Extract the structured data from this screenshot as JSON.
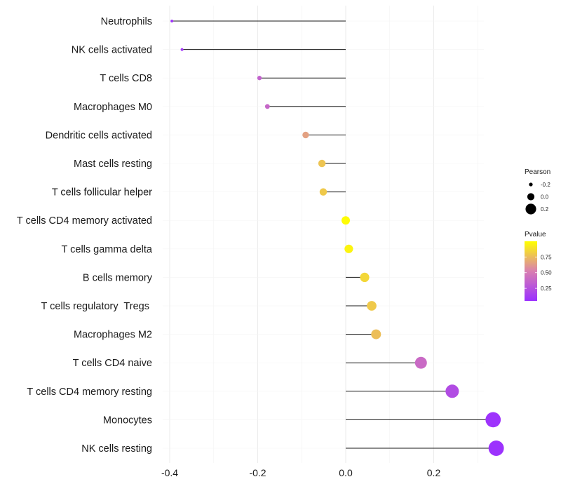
{
  "chart_data": {
    "type": "lollipop",
    "title": "",
    "xlabel": "",
    "ylabel": "",
    "xlim": [
      -0.42,
      0.36
    ],
    "x_ticks": [
      -0.4,
      -0.2,
      0.0,
      0.2
    ],
    "x_tick_labels": [
      "-0.4",
      "-0.2",
      "0.0",
      "0.2"
    ],
    "grid": true,
    "categories": [
      "Neutrophils",
      "NK cells activated",
      "T cells CD8",
      "Macrophages M0",
      "Dendritic cells activated",
      "Mast cells resting",
      "T cells follicular helper",
      "T cells CD4 memory activated",
      "T cells gamma delta",
      "B cells memory",
      "T cells regulatory  Tregs ",
      "Macrophages M2",
      "T cells CD4 naive",
      "T cells CD4 memory resting",
      "Monocytes",
      "NK cells resting"
    ],
    "pearson": [
      -0.395,
      -0.372,
      -0.196,
      -0.178,
      -0.091,
      -0.054,
      -0.051,
      0.0,
      0.007,
      0.043,
      0.059,
      0.069,
      0.171,
      0.242,
      0.335,
      0.342
    ],
    "pvalue": [
      0.08,
      0.1,
      0.35,
      0.38,
      0.65,
      0.78,
      0.8,
      0.99,
      0.96,
      0.85,
      0.8,
      0.76,
      0.4,
      0.22,
      0.07,
      0.06
    ],
    "legend": {
      "size": {
        "title": "Pearson",
        "entries": [
          "-0.2",
          "0.0",
          "0.2"
        ]
      },
      "color": {
        "title": "Pvalue",
        "range": [
          0.05,
          1.0
        ],
        "ticks": [
          "0.75",
          "0.50",
          "0.25"
        ],
        "tick_values": [
          0.75,
          0.5,
          0.25
        ],
        "low_color": "#9b30ff",
        "mid_color": "#d97fb0",
        "high_color": "#ffff00"
      },
      "placement": "right"
    }
  }
}
